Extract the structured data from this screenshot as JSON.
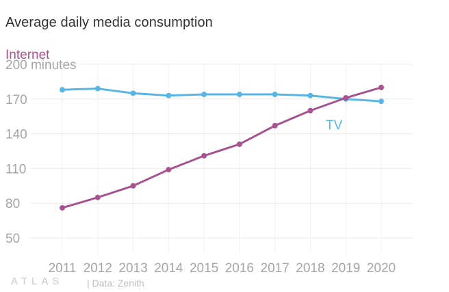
{
  "title": "Average daily media consumption",
  "footer": {
    "logo": "ATLAS",
    "source": "| Data: Zenith"
  },
  "chart_data": {
    "type": "line",
    "title": "Average daily media consumption",
    "x": [
      2011,
      2012,
      2013,
      2014,
      2015,
      2016,
      2017,
      2018,
      2019,
      2020
    ],
    "y_unit_label": "200 minutes",
    "y_ticks": [
      50,
      80,
      110,
      140,
      170,
      200
    ],
    "ylim": [
      50,
      200
    ],
    "grid": true,
    "series": [
      {
        "name": "Internet",
        "color": "#a6538f",
        "values": [
          76,
          85,
          95,
          109,
          121,
          131,
          147,
          160,
          171,
          180
        ]
      },
      {
        "name": "TV",
        "color": "#59b6e4",
        "values": [
          178,
          179,
          175,
          173,
          174,
          174,
          174,
          173,
          170,
          168
        ]
      }
    ]
  }
}
